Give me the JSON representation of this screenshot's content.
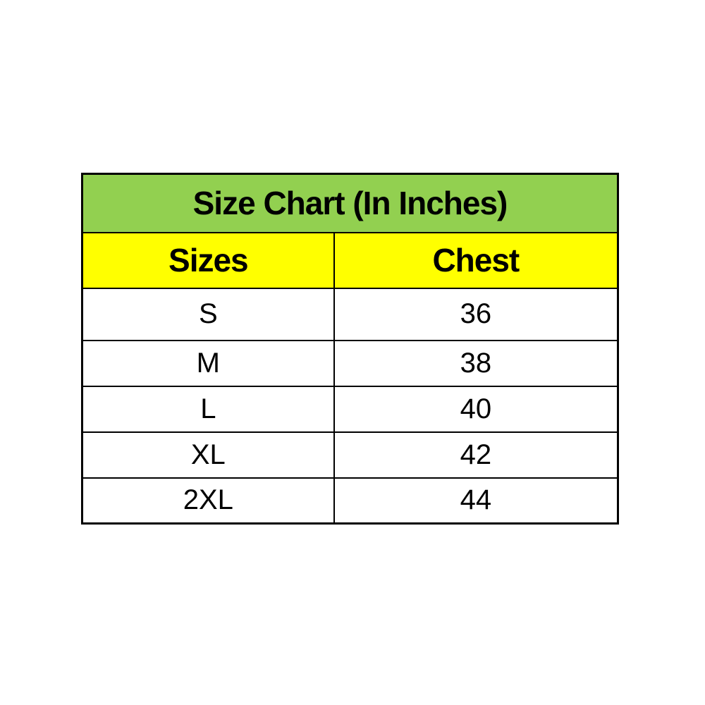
{
  "colors": {
    "title_row_bg": "#92D050",
    "header_row_bg": "#FFFF00",
    "data_row_bg": "#FFFFFF",
    "border": "#000000",
    "text": "#000000",
    "page_bg": "#FFFFFF"
  },
  "chart_data": {
    "type": "table",
    "title": "Size Chart (In Inches)",
    "columns": [
      "Sizes",
      "Chest"
    ],
    "rows": [
      [
        "S",
        "36"
      ],
      [
        "M",
        "38"
      ],
      [
        "L",
        "40"
      ],
      [
        "XL",
        "42"
      ],
      [
        "2XL",
        "44"
      ]
    ]
  }
}
